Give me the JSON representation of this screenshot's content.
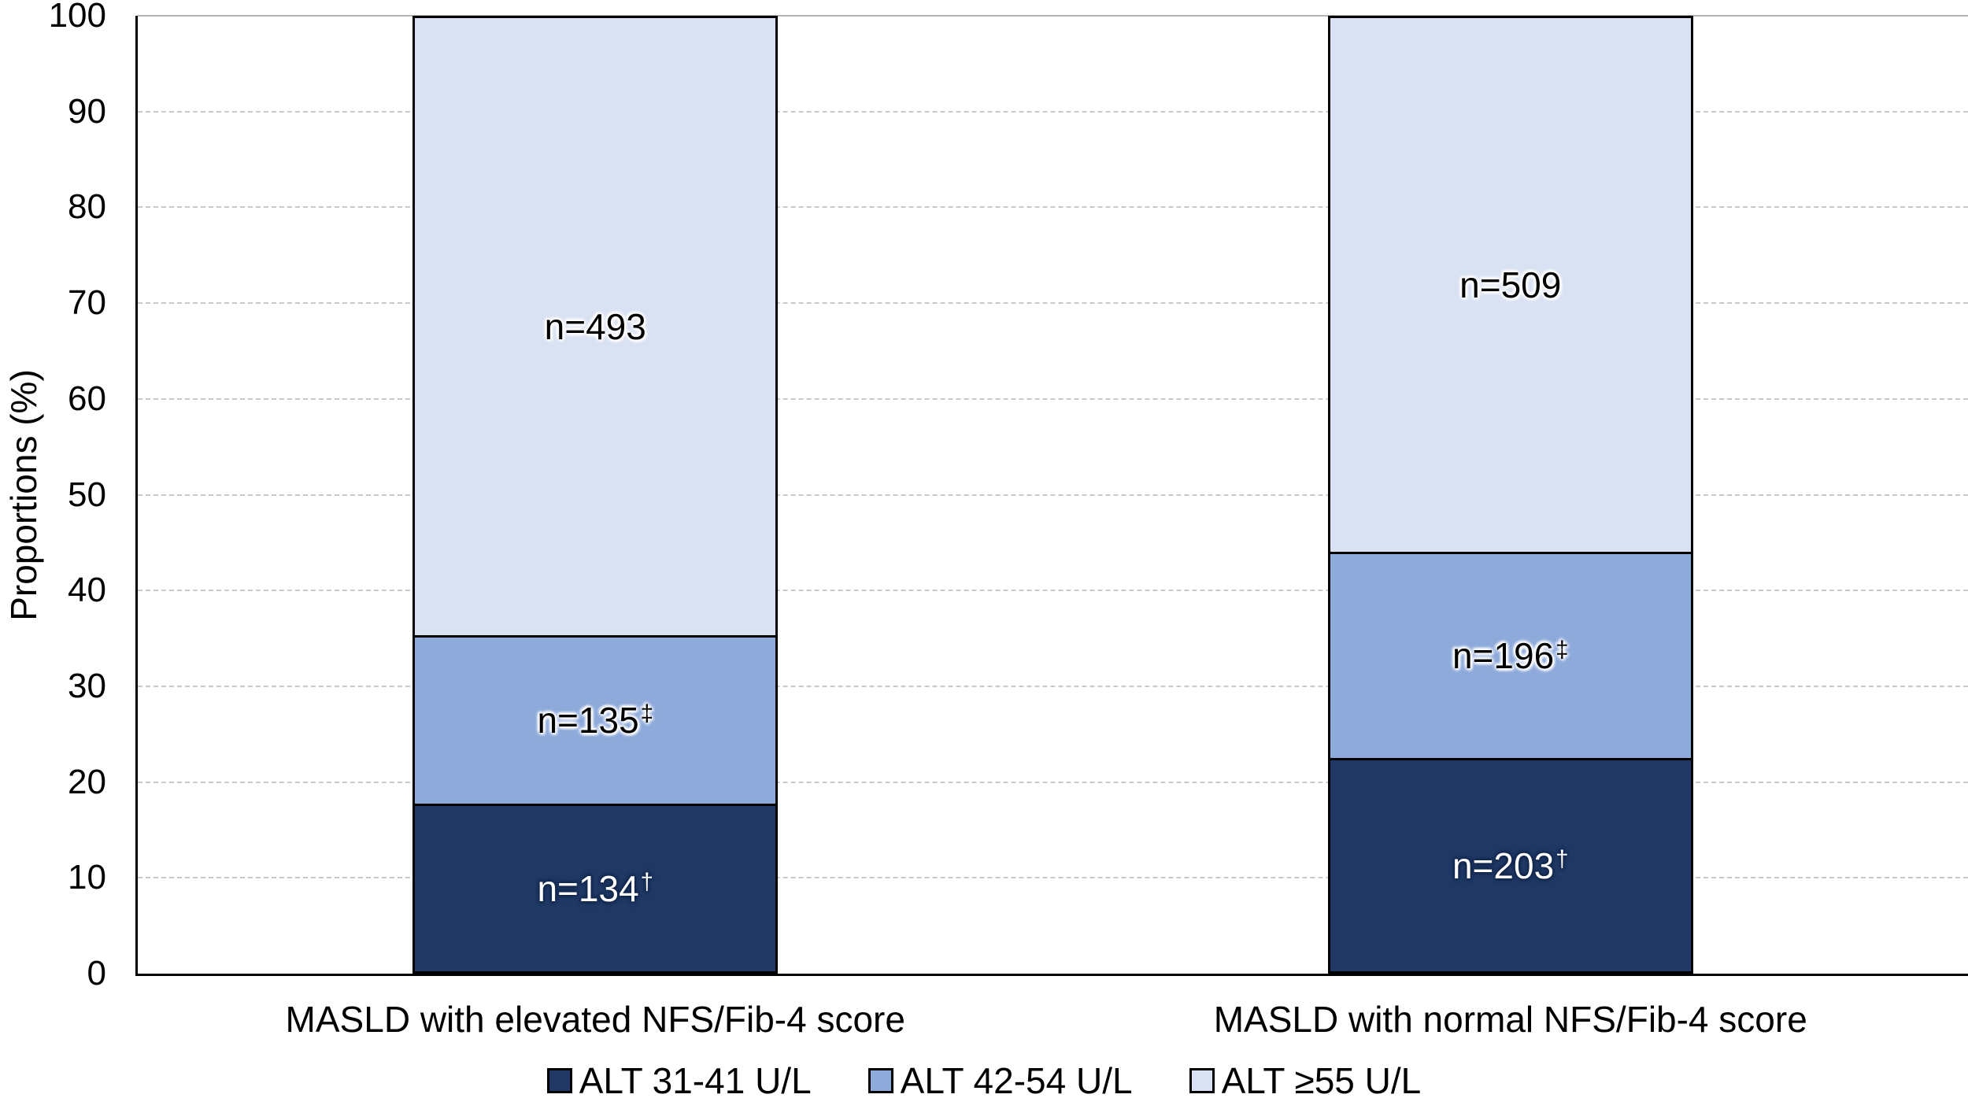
{
  "chart_data": {
    "type": "bar",
    "variant": "100-percent-stacked-column",
    "title": "",
    "xlabel": "",
    "ylabel": "Proportions (%)",
    "ylim": [
      0,
      100
    ],
    "yticks": [
      0,
      10,
      20,
      30,
      40,
      50,
      60,
      70,
      80,
      90,
      100
    ],
    "grid": "horizontal dashed light-gray, top line solid",
    "legend_position": "bottom-center",
    "axis_color": "#000000",
    "gridline_color": "#C9C9C9",
    "categories": [
      "MASLD with elevated NFS/Fib-4 score",
      "MASLD with normal NFS/Fib-4 score"
    ],
    "series": [
      {
        "name": "ALT 31-41 U/L",
        "color": "#1F3864",
        "label_color": "#FFFFFF",
        "counts": [
          134,
          203
        ],
        "percents": [
          17.6,
          22.4
        ],
        "labels": [
          {
            "text": "n=134",
            "sup": "†"
          },
          {
            "text": "n=203",
            "sup": "†"
          }
        ]
      },
      {
        "name": "ALT 42-54 U/L",
        "color": "#8EAADB",
        "label_color": "#000000",
        "counts": [
          135,
          196
        ],
        "percents": [
          17.7,
          21.6
        ],
        "labels": [
          {
            "text": "n=135",
            "sup": "‡"
          },
          {
            "text": "n=196",
            "sup": "‡"
          }
        ]
      },
      {
        "name": "ALT ≥55 U/L",
        "color": "#D9E2F3",
        "label_color": "#000000",
        "counts": [
          493,
          509
        ],
        "percents": [
          64.7,
          56.0
        ],
        "labels": [
          {
            "text": "n=493",
            "sup": ""
          },
          {
            "text": "n=509",
            "sup": ""
          }
        ]
      }
    ]
  }
}
